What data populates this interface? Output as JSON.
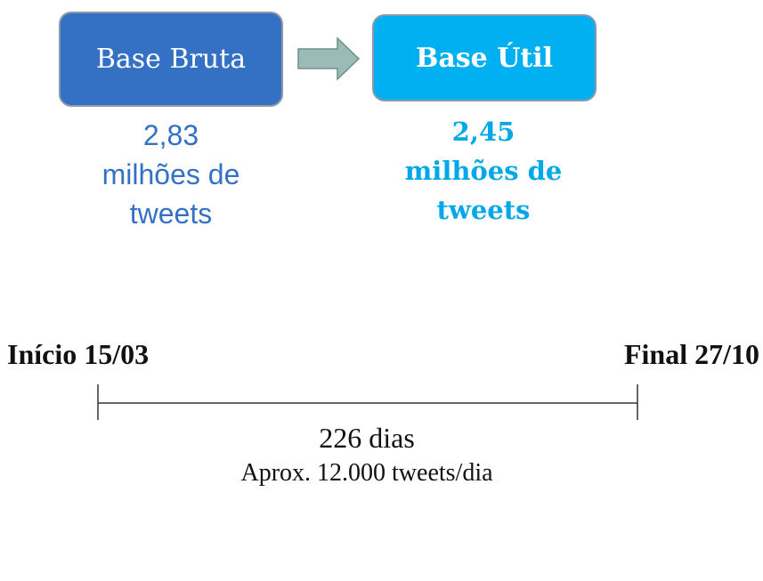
{
  "raw_base": {
    "label": "Base Bruta",
    "count_lines": [
      "2,83",
      "milhões de",
      "tweets"
    ],
    "color": "#3471c5"
  },
  "useful_base": {
    "label": "Base Útil",
    "count_lines": [
      "2,45",
      "milhões de",
      "tweets"
    ],
    "color": "#00b0f0"
  },
  "arrow": {
    "icon": "right-arrow-icon",
    "color": "#9bbcb6"
  },
  "timeline": {
    "start_label": "Início 15/03",
    "end_label": "Final 27/10",
    "duration": "226 dias",
    "rate": "Aprox. 12.000 tweets/dia"
  }
}
